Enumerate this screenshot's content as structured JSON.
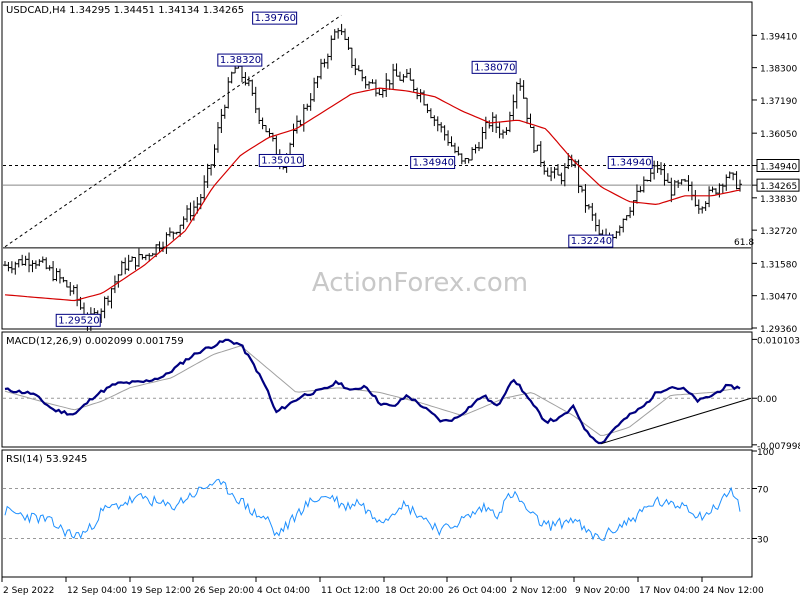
{
  "symbol_header": "USDCAD,H4  1.34295 1.34451 1.34134 1.34265",
  "watermark": "ActionForex.com",
  "colors": {
    "bar": "#000000",
    "ma": "#d40000",
    "macd": "#000080",
    "macd_signal": "#a0a0a0",
    "rsi": "#1e90ff",
    "grid_dashed": "#9a9a9a",
    "label_box": "#000080",
    "watermark": "#c8c8c8"
  },
  "chart_data": [
    {
      "type": "candlestick",
      "panel": "price",
      "ylim": [
        1.2936,
        1.4052
      ],
      "y_ticks": [
        "1.39410",
        "1.38300",
        "1.37190",
        "1.36050",
        "1.34940",
        "1.34265",
        "1.33830",
        "1.32720",
        "1.31580",
        "1.30470",
        "1.29360"
      ],
      "current_price": "1.34265",
      "resistance_line": "1.34940",
      "fib_level": {
        "label": "61.8",
        "value": 1.3211
      },
      "annotations": [
        "1.39760",
        "1.38320",
        "1.38070",
        "1.35010",
        "1.34940",
        "1.34940",
        "1.32240",
        "1.29520"
      ],
      "series_keypoints": [
        [
          0,
          1.3152
        ],
        [
          4,
          1.3175
        ],
        [
          8,
          1.3102
        ],
        [
          10,
          1.3052
        ],
        [
          12,
          1.2952
        ],
        [
          14,
          1.301
        ],
        [
          17,
          1.315
        ],
        [
          20,
          1.318
        ],
        [
          24,
          1.326
        ],
        [
          26,
          1.332
        ],
        [
          28,
          1.337
        ],
        [
          30,
          1.352
        ],
        [
          31,
          1.365
        ],
        [
          33,
          1.3832
        ],
        [
          35,
          1.378
        ],
        [
          36,
          1.37
        ],
        [
          38,
          1.36
        ],
        [
          40,
          1.3501
        ],
        [
          42,
          1.362
        ],
        [
          44,
          1.373
        ],
        [
          46,
          1.385
        ],
        [
          48,
          1.3976
        ],
        [
          50,
          1.385
        ],
        [
          52,
          1.378
        ],
        [
          54,
          1.376
        ],
        [
          56,
          1.38
        ],
        [
          58,
          1.379
        ],
        [
          60,
          1.374
        ],
        [
          62,
          1.365
        ],
        [
          64,
          1.358
        ],
        [
          66,
          1.3494
        ],
        [
          68,
          1.356
        ],
        [
          70,
          1.365
        ],
        [
          72,
          1.36
        ],
        [
          74,
          1.3807
        ],
        [
          75,
          1.371
        ],
        [
          76,
          1.358
        ],
        [
          78,
          1.348
        ],
        [
          80,
          1.345
        ],
        [
          82,
          1.352
        ],
        [
          83,
          1.34
        ],
        [
          85,
          1.33
        ],
        [
          86,
          1.3224
        ],
        [
          88,
          1.327
        ],
        [
          90,
          1.335
        ],
        [
          92,
          1.342
        ],
        [
          94,
          1.3494
        ],
        [
          96,
          1.341
        ],
        [
          98,
          1.343
        ],
        [
          100,
          1.336
        ],
        [
          102,
          1.34
        ],
        [
          104,
          1.346
        ],
        [
          106,
          1.3426
        ]
      ],
      "ma_keypoints": [
        [
          0,
          1.305
        ],
        [
          10,
          1.303
        ],
        [
          14,
          1.3055
        ],
        [
          20,
          1.315
        ],
        [
          26,
          1.327
        ],
        [
          30,
          1.342
        ],
        [
          34,
          1.353
        ],
        [
          38,
          1.359
        ],
        [
          42,
          1.362
        ],
        [
          46,
          1.368
        ],
        [
          50,
          1.374
        ],
        [
          54,
          1.376
        ],
        [
          58,
          1.375
        ],
        [
          62,
          1.373
        ],
        [
          66,
          1.368
        ],
        [
          70,
          1.364
        ],
        [
          74,
          1.365
        ],
        [
          78,
          1.362
        ],
        [
          82,
          1.351
        ],
        [
          86,
          1.342
        ],
        [
          90,
          1.337
        ],
        [
          94,
          1.336
        ],
        [
          98,
          1.339
        ],
        [
          102,
          1.339
        ],
        [
          106,
          1.341
        ]
      ]
    },
    {
      "type": "line",
      "panel": "macd",
      "label": "MACD(12,26,9) 0.002099 0.001759",
      "ylim": [
        -0.0082,
        0.0112
      ],
      "y_ticks": [
        "0.010103",
        "0.00",
        "-0.007998"
      ],
      "macd_keypoints": [
        [
          0,
          0.0015
        ],
        [
          4,
          0.0008
        ],
        [
          7,
          -0.002
        ],
        [
          10,
          -0.0028
        ],
        [
          13,
          0.0005
        ],
        [
          16,
          0.0025
        ],
        [
          20,
          0.0028
        ],
        [
          23,
          0.0038
        ],
        [
          26,
          0.0065
        ],
        [
          28,
          0.008
        ],
        [
          30,
          0.009
        ],
        [
          32,
          0.01
        ],
        [
          34,
          0.0092
        ],
        [
          36,
          0.0055
        ],
        [
          38,
          0.001
        ],
        [
          39,
          -0.0025
        ],
        [
          41,
          -0.001
        ],
        [
          43,
          0.0005
        ],
        [
          46,
          0.0015
        ],
        [
          48,
          0.0028
        ],
        [
          50,
          0.0012
        ],
        [
          52,
          0.0022
        ],
        [
          54,
          -0.0008
        ],
        [
          56,
          -0.0015
        ],
        [
          58,
          0.0005
        ],
        [
          60,
          -0.0012
        ],
        [
          63,
          -0.004
        ],
        [
          65,
          -0.0035
        ],
        [
          67,
          -0.0015
        ],
        [
          69,
          0.0005
        ],
        [
          71,
          -0.0015
        ],
        [
          73,
          0.003
        ],
        [
          74,
          0.0025
        ],
        [
          76,
          -0.001
        ],
        [
          78,
          -0.004
        ],
        [
          80,
          -0.0035
        ],
        [
          82,
          -0.0015
        ],
        [
          84,
          -0.006
        ],
        [
          86,
          -0.0078
        ],
        [
          88,
          -0.005
        ],
        [
          90,
          -0.003
        ],
        [
          92,
          -0.0015
        ],
        [
          94,
          0.001
        ],
        [
          96,
          0.002
        ],
        [
          98,
          0.0015
        ],
        [
          100,
          -0.0005
        ],
        [
          102,
          0.0005
        ],
        [
          104,
          0.002
        ],
        [
          106,
          0.0018
        ]
      ],
      "signal_keypoints": [
        [
          0,
          0.0012
        ],
        [
          6,
          -0.0008
        ],
        [
          10,
          -0.002
        ],
        [
          14,
          -0.0005
        ],
        [
          18,
          0.0018
        ],
        [
          24,
          0.0035
        ],
        [
          30,
          0.0075
        ],
        [
          34,
          0.009
        ],
        [
          38,
          0.005
        ],
        [
          42,
          0.001
        ],
        [
          48,
          0.0018
        ],
        [
          54,
          0.001
        ],
        [
          60,
          -0.0008
        ],
        [
          66,
          -0.003
        ],
        [
          72,
          0.0
        ],
        [
          76,
          0.001
        ],
        [
          82,
          -0.003
        ],
        [
          86,
          -0.0065
        ],
        [
          90,
          -0.005
        ],
        [
          96,
          0.0005
        ],
        [
          102,
          0.001
        ],
        [
          106,
          0.0018
        ]
      ],
      "trendline_keypoints": [
        [
          86,
          -0.0078
        ],
        [
          110,
          0.0
        ]
      ]
    },
    {
      "type": "line",
      "panel": "rsi",
      "label": "RSI(14) 53.9245",
      "ylim": [
        0,
        100
      ],
      "y_ticks": [
        "100",
        "70",
        "30"
      ],
      "keypoints": [
        [
          0,
          52
        ],
        [
          3,
          48
        ],
        [
          6,
          45
        ],
        [
          8,
          38
        ],
        [
          10,
          32
        ],
        [
          12,
          36
        ],
        [
          14,
          52
        ],
        [
          16,
          56
        ],
        [
          18,
          60
        ],
        [
          20,
          63
        ],
        [
          22,
          58
        ],
        [
          24,
          55
        ],
        [
          26,
          62
        ],
        [
          28,
          68
        ],
        [
          30,
          75
        ],
        [
          32,
          70
        ],
        [
          34,
          60
        ],
        [
          36,
          50
        ],
        [
          38,
          45
        ],
        [
          39,
          32
        ],
        [
          41,
          42
        ],
        [
          43,
          55
        ],
        [
          45,
          62
        ],
        [
          47,
          64
        ],
        [
          49,
          55
        ],
        [
          51,
          60
        ],
        [
          53,
          48
        ],
        [
          55,
          46
        ],
        [
          57,
          58
        ],
        [
          59,
          52
        ],
        [
          61,
          44
        ],
        [
          63,
          36
        ],
        [
          65,
          42
        ],
        [
          67,
          48
        ],
        [
          69,
          55
        ],
        [
          71,
          50
        ],
        [
          73,
          66
        ],
        [
          74,
          62
        ],
        [
          76,
          48
        ],
        [
          78,
          40
        ],
        [
          80,
          42
        ],
        [
          82,
          46
        ],
        [
          84,
          34
        ],
        [
          86,
          30
        ],
        [
          88,
          38
        ],
        [
          90,
          44
        ],
        [
          92,
          52
        ],
        [
          94,
          60
        ],
        [
          96,
          56
        ],
        [
          98,
          58
        ],
        [
          100,
          48
        ],
        [
          102,
          52
        ],
        [
          104,
          65
        ],
        [
          105,
          68
        ],
        [
          106,
          54
        ]
      ]
    }
  ],
  "x_tick_labels": [
    "2 Sep 2022",
    "12 Sep 04:00",
    "19 Sep 12:00",
    "26 Sep 20:00",
    "4 Oct 04:00",
    "11 Oct 12:00",
    "18 Oct 20:00",
    "26 Oct 04:00",
    "2 Nov 12:00",
    "9 Nov 20:00",
    "17 Nov 04:00",
    "24 Nov 12:00"
  ]
}
